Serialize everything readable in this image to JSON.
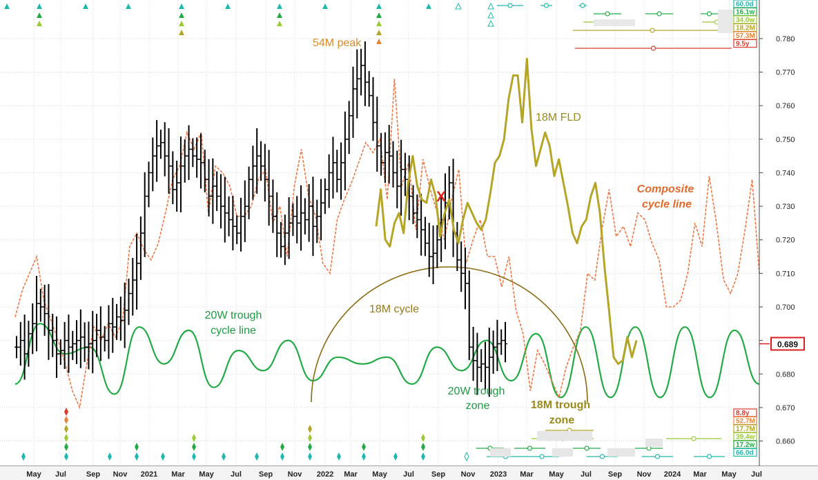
{
  "chart_data": {
    "type": "line",
    "title": "",
    "xlabel": "",
    "ylabel": "",
    "ylim": [
      0.6525,
      0.7915
    ],
    "y_ticks": [
      0.66,
      0.67,
      0.68,
      0.69,
      0.7,
      0.71,
      0.72,
      0.73,
      0.74,
      0.75,
      0.76,
      0.77,
      0.78
    ],
    "x_ticks": [
      "May",
      "Jul",
      "Sep",
      "Nov",
      "2021",
      "Mar",
      "May",
      "Jul",
      "Sep",
      "Nov",
      "2022",
      "Mar",
      "May",
      "Jul",
      "Sep",
      "Nov",
      "2023",
      "Mar",
      "May",
      "Jul",
      "Sep",
      "Nov",
      "2024",
      "Mar",
      "May",
      "Jul"
    ],
    "x_range": [
      "2020-03-25",
      "2024-08-01"
    ],
    "last_price": "0.689",
    "price_bars": {
      "name": "Price (weekly bars)",
      "closes": [
        0.688,
        0.69,
        0.686,
        0.692,
        0.695,
        0.701,
        0.7,
        0.698,
        0.693,
        0.69,
        0.686,
        0.687,
        0.69,
        0.688,
        0.689,
        0.69,
        0.691,
        0.688,
        0.689,
        0.69,
        0.693,
        0.691,
        0.69,
        0.695,
        0.694,
        0.697,
        0.696,
        0.699,
        0.704,
        0.708,
        0.713,
        0.722,
        0.733,
        0.74,
        0.745,
        0.748,
        0.749,
        0.745,
        0.742,
        0.735,
        0.737,
        0.742,
        0.745,
        0.747,
        0.745,
        0.744,
        0.743,
        0.738,
        0.733,
        0.736,
        0.733,
        0.73,
        0.728,
        0.726,
        0.724,
        0.722,
        0.727,
        0.73,
        0.738,
        0.742,
        0.745,
        0.742,
        0.738,
        0.733,
        0.727,
        0.722,
        0.718,
        0.722,
        0.725,
        0.727,
        0.725,
        0.728,
        0.726,
        0.73,
        0.724,
        0.727,
        0.731,
        0.735,
        0.74,
        0.743,
        0.738,
        0.743,
        0.75,
        0.757,
        0.765,
        0.768,
        0.772,
        0.767,
        0.763,
        0.755,
        0.748,
        0.743,
        0.746,
        0.745,
        0.74,
        0.736,
        0.741,
        0.738,
        0.733,
        0.728,
        0.726,
        0.723,
        0.719,
        0.715,
        0.716,
        0.72,
        0.726,
        0.731,
        0.737,
        0.722,
        0.714,
        0.71,
        0.707,
        0.688,
        0.684,
        0.682,
        0.683,
        0.682,
        0.685,
        0.688,
        0.689,
        0.69,
        0.689
      ]
    },
    "series": [
      {
        "name": "18M FLD",
        "color": "#b5a526",
        "values": [
          0.724,
          0.735,
          0.72,
          0.718,
          0.725,
          0.728,
          0.722,
          0.737,
          0.745,
          0.736,
          0.732,
          0.731,
          0.738,
          0.733,
          0.721,
          0.728,
          0.732,
          0.723,
          0.719,
          0.726,
          0.731,
          0.728,
          0.725,
          0.723,
          0.726,
          0.734,
          0.743,
          0.745,
          0.75,
          0.762,
          0.769,
          0.769,
          0.755,
          0.774,
          0.753,
          0.742,
          0.747,
          0.752,
          0.748,
          0.739,
          0.744,
          0.737,
          0.73,
          0.722,
          0.719,
          0.724,
          0.726,
          0.733,
          0.737,
          0.728,
          0.712,
          0.699,
          0.685,
          0.683,
          0.684,
          0.691,
          0.685,
          0.69
        ]
      },
      {
        "name": "Composite cycle line",
        "color": "#ee7744",
        "values": [
          0.697,
          0.705,
          0.71,
          0.715,
          0.702,
          0.696,
          0.69,
          0.683,
          0.675,
          0.67,
          0.683,
          0.694,
          0.69,
          0.695,
          0.691,
          0.696,
          0.718,
          0.722,
          0.717,
          0.714,
          0.719,
          0.728,
          0.738,
          0.742,
          0.752,
          0.747,
          0.752,
          0.728,
          0.742,
          0.74,
          0.736,
          0.727,
          0.727,
          0.73,
          0.738,
          0.741,
          0.725,
          0.73,
          0.715,
          0.736,
          0.747,
          0.733,
          0.727,
          0.713,
          0.71,
          0.726,
          0.732,
          0.737,
          0.743,
          0.749,
          0.746,
          0.75,
          0.732,
          0.768,
          0.736,
          0.743,
          0.723,
          0.744,
          0.735,
          0.728,
          0.72,
          0.732,
          0.741,
          0.713,
          0.72,
          0.726,
          0.715,
          0.715,
          0.706,
          0.715,
          0.699,
          0.692,
          0.675,
          0.687,
          0.683,
          0.678,
          0.673,
          0.682,
          0.688,
          0.693,
          0.71,
          0.708,
          0.723,
          0.735,
          0.721,
          0.724,
          0.718,
          0.728,
          0.726,
          0.719,
          0.714,
          0.7,
          0.7,
          0.702,
          0.71,
          0.725,
          0.718,
          0.739,
          0.725,
          0.708,
          0.704,
          0.71,
          0.723,
          0.738,
          0.71
        ]
      },
      {
        "name": "20W trough cycle line",
        "color": "#22aa44",
        "values": [
          0.677,
          0.695,
          0.686,
          0.688,
          0.674,
          0.694,
          0.683,
          0.693,
          0.676,
          0.687,
          0.681,
          0.69,
          0.678,
          0.685,
          0.683,
          0.685,
          0.677,
          0.688,
          0.681,
          0.69,
          0.678,
          0.692,
          0.673,
          0.694,
          0.673,
          0.694,
          0.673,
          0.694,
          0.673,
          0.693,
          0.677
        ]
      },
      {
        "name": "18M cycle",
        "color": "#8b6a12",
        "values": []
      }
    ],
    "annotations": {
      "peak_54m": "54M peak",
      "fld_18m": "18M FLD",
      "composite_1": "Composite",
      "composite_2": "cycle line",
      "trough_line_1": "20W trough",
      "trough_line_2": "cycle line",
      "cycle_18m": "18M cycle",
      "zone20w_1": "20W trough",
      "zone20w_2": "zone",
      "zone18m_1": "18M trough",
      "zone18m_2": "zone",
      "x_mark": "X"
    },
    "cycle_legend_top": [
      {
        "label": "60.0d",
        "color": "#1fb8b0"
      },
      {
        "label": "16.1w",
        "color": "#22aa44"
      },
      {
        "label": "34.0w",
        "color": "#99cc33"
      },
      {
        "label": "18.2M",
        "color": "#b5a526"
      },
      {
        "label": "57.3M",
        "color": "#e8843a"
      },
      {
        "label": "9.5y",
        "color": "#d93a2b"
      }
    ],
    "cycle_legend_bottom": [
      {
        "label": "8.8y",
        "color": "#d93a2b"
      },
      {
        "label": "52.7M",
        "color": "#e8843a"
      },
      {
        "label": "17.7M",
        "color": "#b5a526"
      },
      {
        "label": "39.4w",
        "color": "#99cc33"
      },
      {
        "label": "17.2w",
        "color": "#22aa44"
      },
      {
        "label": "66.0d",
        "color": "#1fb8b0"
      }
    ],
    "grid": true,
    "legend_placement": "top-right and bottom-right"
  }
}
